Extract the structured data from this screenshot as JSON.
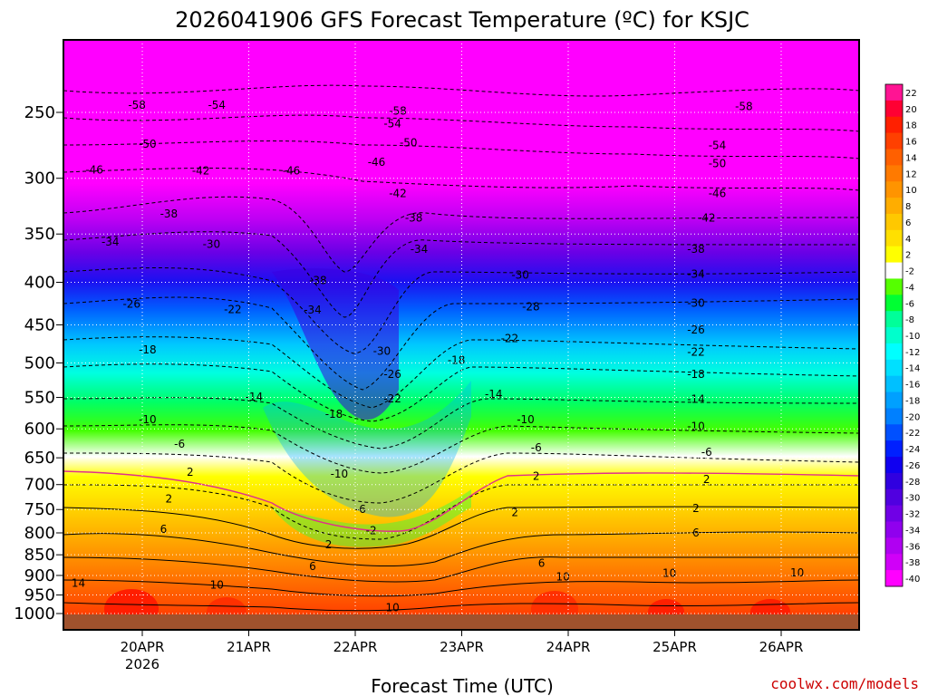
{
  "chart_data": {
    "type": "heatmap",
    "title": "2026041906 GFS Forecast Temperature (ºC) for KSJC",
    "xlabel": "Forecast Time (UTC)",
    "ylabel": "",
    "credit": "coolwx.com/models",
    "x_ticks": [
      "20APR",
      "21APR",
      "22APR",
      "23APR",
      "24APR",
      "25APR",
      "26APR"
    ],
    "x_year": "2026",
    "y_ticks": [
      "250",
      "300",
      "350",
      "400",
      "450",
      "500",
      "550",
      "600",
      "650",
      "700",
      "750",
      "800",
      "850",
      "900",
      "950",
      "1000"
    ],
    "y_pressure": [
      250,
      300,
      350,
      400,
      450,
      500,
      550,
      600,
      650,
      700,
      750,
      800,
      850,
      900,
      950,
      1000
    ],
    "colorbar_ticks": [
      "22",
      "20",
      "18",
      "16",
      "14",
      "12",
      "10",
      "8",
      "6",
      "4",
      "2",
      "-2",
      "-4",
      "-6",
      "-8",
      "-10",
      "-12",
      "-14",
      "-16",
      "-18",
      "-20",
      "-22",
      "-24",
      "-26",
      "-28",
      "-30",
      "-32",
      "-34",
      "-36",
      "-38",
      "-40"
    ],
    "colorbar_colors": [
      "#ff1493",
      "#ff0033",
      "#ff2000",
      "#ff4000",
      "#ff6000",
      "#ff7a00",
      "#ff9400",
      "#ffad00",
      "#ffc800",
      "#ffe000",
      "#ffff00",
      "#ffffff",
      "#55ff00",
      "#00ff33",
      "#00ff99",
      "#00ffcc",
      "#00ffff",
      "#00e0ff",
      "#00c0ff",
      "#00a0ff",
      "#0080ff",
      "#0050ff",
      "#0020ff",
      "#1000f0",
      "#3000e0",
      "#5000e0",
      "#7000e6",
      "#9000ee",
      "#b000f2",
      "#d000f8",
      "#ff00ff"
    ],
    "time_days": [
      0,
      1,
      2,
      3,
      4,
      5,
      6
    ],
    "sample_profile_pressure": [
      250,
      300,
      350,
      400,
      450,
      500,
      550,
      600,
      650,
      700,
      750,
      800,
      850,
      900,
      950,
      1000
    ],
    "sample_profile_temp": [
      -56,
      -46,
      -36,
      -28,
      -22,
      -16,
      -12,
      -8,
      -4,
      2,
      4,
      6,
      8,
      10,
      12,
      18
    ],
    "contours": [
      {
        "label": "-58",
        "y": 252,
        "line": "dashed"
      },
      {
        "label": "-54",
        "y": 258,
        "line": "dashed"
      },
      {
        "label": "-50",
        "y": 275,
        "line": "dashed"
      },
      {
        "label": "-46",
        "y": 293,
        "line": "dashed"
      },
      {
        "label": "-42",
        "y": 312,
        "line": "dashed"
      },
      {
        "label": "-38",
        "y": 335,
        "line": "dashed"
      },
      {
        "label": "-34",
        "y": 360,
        "line": "dashed"
      },
      {
        "label": "-30",
        "y": 392,
        "line": "dashed"
      },
      {
        "label": "-26",
        "y": 425,
        "line": "dashed"
      },
      {
        "label": "-22",
        "y": 458,
        "line": "dashed"
      },
      {
        "label": "-18",
        "y": 495,
        "line": "dashed"
      },
      {
        "label": "-14",
        "y": 545,
        "line": "dashed"
      },
      {
        "label": "-10",
        "y": 585,
        "line": "dashed"
      },
      {
        "label": "-6",
        "y": 630,
        "line": "dashed"
      },
      {
        "label": "-2",
        "y": 690,
        "line": "dashed"
      },
      {
        "label": "2",
        "y": 740,
        "line": "solid"
      },
      {
        "label": "6",
        "y": 800,
        "line": "solid"
      },
      {
        "label": "10",
        "y": 930,
        "line": "solid"
      },
      {
        "label": "14",
        "y": 970,
        "line": "solid"
      }
    ],
    "plot_labels": [
      {
        "text": "-58",
        "day": -0.05,
        "p": 245
      },
      {
        "text": "-54",
        "day": 0.7,
        "p": 245
      },
      {
        "text": "-54",
        "day": 2.35,
        "p": 258
      },
      {
        "text": "-58",
        "day": 2.4,
        "p": 249
      },
      {
        "text": "-58",
        "day": 5.65,
        "p": 246
      },
      {
        "text": "-50",
        "day": 0.05,
        "p": 273
      },
      {
        "text": "-50",
        "day": 2.5,
        "p": 272
      },
      {
        "text": "-54",
        "day": 5.4,
        "p": 274
      },
      {
        "text": "-50",
        "day": 5.4,
        "p": 288
      },
      {
        "text": "-46",
        "day": -0.45,
        "p": 293
      },
      {
        "text": "-42",
        "day": 0.55,
        "p": 294
      },
      {
        "text": "-46",
        "day": 1.4,
        "p": 294
      },
      {
        "text": "-46",
        "day": 2.2,
        "p": 287
      },
      {
        "text": "-42",
        "day": 2.4,
        "p": 313
      },
      {
        "text": "-46",
        "day": 5.4,
        "p": 313
      },
      {
        "text": "-38",
        "day": 0.25,
        "p": 331
      },
      {
        "text": "-38",
        "day": 2.55,
        "p": 335
      },
      {
        "text": "-42",
        "day": 5.3,
        "p": 335
      },
      {
        "text": "-34",
        "day": -0.3,
        "p": 358
      },
      {
        "text": "-30",
        "day": 0.65,
        "p": 360
      },
      {
        "text": "-34",
        "day": 2.6,
        "p": 365
      },
      {
        "text": "-38",
        "day": 5.2,
        "p": 365
      },
      {
        "text": "-38",
        "day": 1.65,
        "p": 398
      },
      {
        "text": "-30",
        "day": 3.55,
        "p": 392
      },
      {
        "text": "-34",
        "day": 5.2,
        "p": 391
      },
      {
        "text": "-26",
        "day": -0.1,
        "p": 425
      },
      {
        "text": "-22",
        "day": 0.85,
        "p": 431
      },
      {
        "text": "-34",
        "day": 1.6,
        "p": 432
      },
      {
        "text": "-28",
        "day": 3.65,
        "p": 428
      },
      {
        "text": "-30",
        "day": 5.2,
        "p": 424
      },
      {
        "text": "-26",
        "day": 5.2,
        "p": 456
      },
      {
        "text": "-18",
        "day": 0.05,
        "p": 482
      },
      {
        "text": "-30",
        "day": 2.25,
        "p": 484
      },
      {
        "text": "-22",
        "day": 3.45,
        "p": 467
      },
      {
        "text": "-22",
        "day": 5.2,
        "p": 485
      },
      {
        "text": "-26",
        "day": 2.35,
        "p": 516
      },
      {
        "text": "-18",
        "day": 2.95,
        "p": 496
      },
      {
        "text": "-18",
        "day": 5.2,
        "p": 516
      },
      {
        "text": "-14",
        "day": 1.05,
        "p": 549
      },
      {
        "text": "-22",
        "day": 2.35,
        "p": 552
      },
      {
        "text": "-14",
        "day": 3.3,
        "p": 545
      },
      {
        "text": "-14",
        "day": 5.2,
        "p": 553
      },
      {
        "text": "-10",
        "day": 0.05,
        "p": 585
      },
      {
        "text": "-18",
        "day": 1.8,
        "p": 576
      },
      {
        "text": "-10",
        "day": 3.6,
        "p": 585
      },
      {
        "text": "-10",
        "day": 5.2,
        "p": 596
      },
      {
        "text": "-6",
        "day": 0.35,
        "p": 626
      },
      {
        "text": "-6",
        "day": 3.7,
        "p": 632
      },
      {
        "text": "-6",
        "day": 5.3,
        "p": 640
      },
      {
        "text": "2",
        "day": 0.45,
        "p": 676
      },
      {
        "text": "-10",
        "day": 1.85,
        "p": 680
      },
      {
        "text": "2",
        "day": 3.7,
        "p": 684
      },
      {
        "text": "2",
        "day": 5.3,
        "p": 690
      },
      {
        "text": "2",
        "day": 0.25,
        "p": 728
      },
      {
        "text": "-6",
        "day": 2.05,
        "p": 750
      },
      {
        "text": "2",
        "day": 3.5,
        "p": 756
      },
      {
        "text": "2",
        "day": 5.2,
        "p": 748
      },
      {
        "text": "6",
        "day": 0.2,
        "p": 792
      },
      {
        "text": "-2",
        "day": 2.15,
        "p": 795
      },
      {
        "text": "2",
        "day": 1.75,
        "p": 827
      },
      {
        "text": "6",
        "day": 5.2,
        "p": 800
      },
      {
        "text": "6",
        "day": 1.6,
        "p": 878
      },
      {
        "text": "6",
        "day": 3.75,
        "p": 870
      },
      {
        "text": "10",
        "day": 3.95,
        "p": 903
      },
      {
        "text": "10",
        "day": 4.95,
        "p": 895
      },
      {
        "text": "10",
        "day": 6.15,
        "p": 893
      },
      {
        "text": "14",
        "day": -0.6,
        "p": 920
      },
      {
        "text": "10",
        "day": 0.7,
        "p": 924
      },
      {
        "text": "10",
        "day": 2.35,
        "p": 984
      }
    ]
  }
}
